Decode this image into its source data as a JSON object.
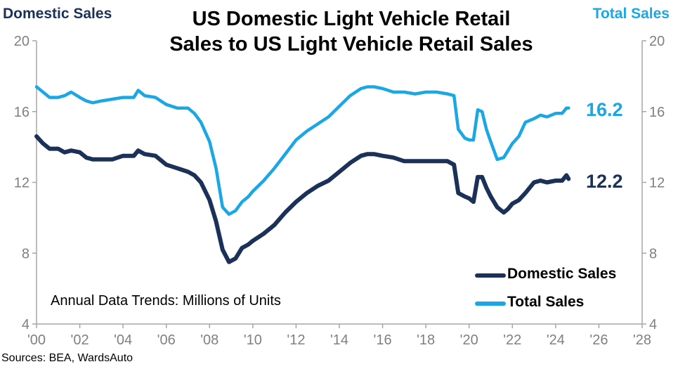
{
  "left_axis_title": "Domestic Sales",
  "right_axis_title": "Total Sales",
  "title_line1": "US Domestic Light Vehicle Retail",
  "title_line2": "Sales to US Light Vehicle Retail Sales",
  "subtitle": "Annual Data Trends: Millions of Units",
  "source": "Sources: BEA, WardsAuto",
  "colors": {
    "domestic": "#1b3158",
    "total": "#1aa7e3",
    "axis": "#a6a6a6",
    "tick_text": "#808080"
  },
  "chart_data": {
    "type": "line",
    "title": "US Domestic Light Vehicle Retail Sales to US Light Vehicle Retail Sales",
    "xlabel": "",
    "ylabel": "Millions of Units",
    "xlim": [
      2000,
      2028
    ],
    "ylim": [
      4,
      20
    ],
    "y_ticks": [
      4,
      8,
      12,
      16,
      20
    ],
    "y_tick_labels": [
      "4",
      "8",
      "12",
      "16",
      "20"
    ],
    "x_ticks": [
      2000,
      2002,
      2004,
      2006,
      2008,
      2010,
      2012,
      2014,
      2016,
      2018,
      2020,
      2022,
      2024,
      2026,
      2028
    ],
    "x_tick_labels": [
      "'00",
      "'02",
      "'04",
      "'06",
      "'08",
      "'10",
      "'12",
      "'14",
      "'16",
      "'18",
      "'20",
      "'22",
      "'24",
      "'26",
      "'28"
    ],
    "legend_position": "bottom-right",
    "series": [
      {
        "name": "Domestic Sales",
        "end_label": "12.2",
        "x": [
          2000.0,
          2000.3,
          2000.6,
          2001.0,
          2001.3,
          2001.6,
          2002.0,
          2002.3,
          2002.6,
          2003.0,
          2003.5,
          2004.0,
          2004.5,
          2004.7,
          2005.0,
          2005.5,
          2006.0,
          2006.5,
          2007.0,
          2007.3,
          2007.6,
          2008.0,
          2008.3,
          2008.6,
          2008.9,
          2009.2,
          2009.5,
          2009.8,
          2010.0,
          2010.5,
          2011.0,
          2011.5,
          2012.0,
          2012.5,
          2013.0,
          2013.5,
          2014.0,
          2014.5,
          2015.0,
          2015.3,
          2015.6,
          2016.0,
          2016.5,
          2017.0,
          2017.5,
          2018.0,
          2018.5,
          2019.0,
          2019.3,
          2019.5,
          2019.8,
          2020.0,
          2020.2,
          2020.4,
          2020.6,
          2020.8,
          2021.0,
          2021.3,
          2021.6,
          2021.8,
          2022.0,
          2022.3,
          2022.6,
          2023.0,
          2023.3,
          2023.6,
          2024.0,
          2024.3,
          2024.5,
          2024.6
        ],
        "values": [
          14.6,
          14.2,
          13.9,
          13.9,
          13.7,
          13.8,
          13.7,
          13.4,
          13.3,
          13.3,
          13.3,
          13.5,
          13.5,
          13.8,
          13.6,
          13.5,
          13.0,
          12.8,
          12.6,
          12.4,
          12.0,
          11.0,
          9.8,
          8.2,
          7.5,
          7.7,
          8.3,
          8.5,
          8.7,
          9.1,
          9.6,
          10.3,
          10.9,
          11.4,
          11.8,
          12.1,
          12.6,
          13.1,
          13.5,
          13.6,
          13.6,
          13.5,
          13.4,
          13.2,
          13.2,
          13.2,
          13.2,
          13.2,
          13.0,
          11.4,
          11.2,
          11.1,
          10.9,
          12.3,
          12.3,
          11.7,
          11.2,
          10.6,
          10.3,
          10.5,
          10.8,
          11.0,
          11.4,
          12.0,
          12.1,
          12.0,
          12.1,
          12.1,
          12.4,
          12.2
        ]
      },
      {
        "name": "Total Sales",
        "end_label": "16.2",
        "x": [
          2000.0,
          2000.3,
          2000.6,
          2001.0,
          2001.3,
          2001.6,
          2002.0,
          2002.3,
          2002.6,
          2003.0,
          2003.5,
          2004.0,
          2004.5,
          2004.7,
          2005.0,
          2005.5,
          2006.0,
          2006.5,
          2007.0,
          2007.3,
          2007.6,
          2008.0,
          2008.3,
          2008.6,
          2008.9,
          2009.2,
          2009.5,
          2009.8,
          2010.0,
          2010.5,
          2011.0,
          2011.5,
          2012.0,
          2012.5,
          2013.0,
          2013.5,
          2014.0,
          2014.5,
          2015.0,
          2015.3,
          2015.6,
          2016.0,
          2016.5,
          2017.0,
          2017.5,
          2018.0,
          2018.5,
          2019.0,
          2019.3,
          2019.5,
          2019.8,
          2020.0,
          2020.2,
          2020.4,
          2020.6,
          2020.8,
          2021.0,
          2021.3,
          2021.6,
          2021.8,
          2022.0,
          2022.3,
          2022.6,
          2023.0,
          2023.3,
          2023.6,
          2024.0,
          2024.3,
          2024.5,
          2024.6
        ],
        "values": [
          17.4,
          17.1,
          16.8,
          16.8,
          16.9,
          17.1,
          16.8,
          16.6,
          16.5,
          16.6,
          16.7,
          16.8,
          16.8,
          17.2,
          16.9,
          16.8,
          16.4,
          16.2,
          16.2,
          15.9,
          15.4,
          14.3,
          12.8,
          10.6,
          10.2,
          10.4,
          10.9,
          11.2,
          11.5,
          12.1,
          12.8,
          13.6,
          14.4,
          14.9,
          15.3,
          15.7,
          16.3,
          16.9,
          17.3,
          17.4,
          17.4,
          17.3,
          17.1,
          17.1,
          17.0,
          17.1,
          17.1,
          17.0,
          16.9,
          15.0,
          14.5,
          14.4,
          14.4,
          16.1,
          16.0,
          15.0,
          14.3,
          13.3,
          13.4,
          13.8,
          14.2,
          14.6,
          15.4,
          15.6,
          15.8,
          15.7,
          15.9,
          15.9,
          16.2,
          16.2
        ]
      }
    ]
  }
}
